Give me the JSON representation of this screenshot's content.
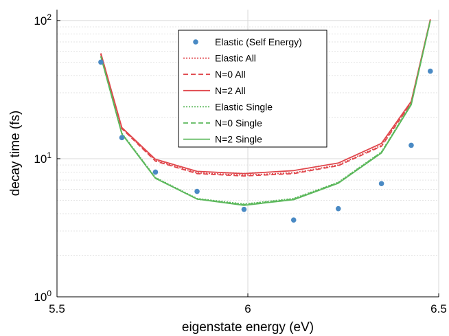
{
  "chart_data": {
    "type": "line",
    "xlabel": "eigenstate energy (eV)",
    "ylabel": "decay time (fs)",
    "xlim": [
      5.5,
      6.5
    ],
    "ylim": [
      1,
      120
    ],
    "yscale": "log",
    "grid": true,
    "legend_position": "top-center",
    "x_ticks": [
      {
        "value": 5.5,
        "label": "5.5"
      },
      {
        "value": 6.0,
        "label": "6"
      },
      {
        "value": 6.5,
        "label": "6.5"
      }
    ],
    "y_ticks": [
      {
        "value": 1,
        "base": "10",
        "exp": "0"
      },
      {
        "value": 10,
        "base": "10",
        "exp": "1"
      },
      {
        "value": 100,
        "base": "10",
        "exp": "2"
      }
    ],
    "series": [
      {
        "name": "Elastic (Self Energy)",
        "style": "markers",
        "color": "#4a8ac4",
        "x": [
          5.615,
          5.67,
          5.758,
          5.867,
          5.99,
          6.12,
          6.237,
          6.35,
          6.428,
          6.478
        ],
        "y": [
          50,
          14.2,
          8.0,
          5.8,
          4.3,
          3.6,
          4.35,
          6.6,
          12.5,
          43
        ]
      },
      {
        "name": "Elastic All",
        "style": "dotted",
        "color": "#e0474c",
        "x": [
          5.615,
          5.67,
          5.758,
          5.867,
          5.99,
          6.12,
          6.237,
          6.35,
          6.428,
          6.478
        ],
        "y": [
          57,
          16.6,
          9.7,
          7.9,
          7.6,
          7.9,
          9.0,
          12.5,
          25.5,
          101
        ]
      },
      {
        "name": "N=0 All",
        "style": "dashed",
        "color": "#e0474c",
        "x": [
          5.615,
          5.67,
          5.758,
          5.867,
          5.99,
          6.12,
          6.237,
          6.35,
          6.428,
          6.478
        ],
        "y": [
          57,
          16.5,
          9.6,
          7.8,
          7.5,
          7.8,
          8.9,
          12.3,
          25.3,
          100
        ]
      },
      {
        "name": "N=2 All",
        "style": "solid",
        "color": "#e0474c",
        "x": [
          5.615,
          5.67,
          5.758,
          5.867,
          5.99,
          6.12,
          6.237,
          6.35,
          6.428,
          6.478
        ],
        "y": [
          58,
          16.8,
          9.9,
          8.1,
          7.8,
          8.2,
          9.3,
          12.9,
          26,
          102
        ]
      },
      {
        "name": "Elastic Single",
        "style": "dotted",
        "color": "#5cb85c",
        "x": [
          5.615,
          5.67,
          5.758,
          5.867,
          5.99,
          6.12,
          6.237,
          6.35,
          6.428,
          6.478
        ],
        "y": [
          55,
          15.3,
          7.3,
          5.15,
          4.7,
          5.15,
          6.75,
          11.2,
          25,
          100
        ]
      },
      {
        "name": "N=0 Single",
        "style": "dashed",
        "color": "#5cb85c",
        "x": [
          5.615,
          5.67,
          5.758,
          5.867,
          5.99,
          6.12,
          6.237,
          6.35,
          6.428,
          6.478
        ],
        "y": [
          55,
          15.2,
          7.25,
          5.1,
          4.65,
          5.1,
          6.7,
          11.1,
          24.8,
          100
        ]
      },
      {
        "name": "N=2 Single",
        "style": "solid",
        "color": "#5cb85c",
        "x": [
          5.615,
          5.67,
          5.758,
          5.867,
          5.99,
          6.12,
          6.237,
          6.35,
          6.428,
          6.478
        ],
        "y": [
          55,
          15.1,
          7.2,
          5.1,
          4.6,
          5.05,
          6.65,
          11.0,
          24.6,
          100
        ]
      }
    ]
  }
}
